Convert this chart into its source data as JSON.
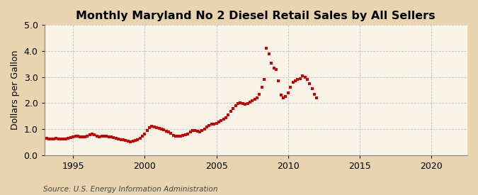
{
  "title": "Monthly Maryland No 2 Diesel Retail Sales by All Sellers",
  "ylabel": "Dollars per Gallon",
  "source": "Source: U.S. Energy Information Administration",
  "xlim": [
    1993.0,
    2022.5
  ],
  "ylim": [
    0.0,
    5.0
  ],
  "xticks": [
    1995,
    2000,
    2005,
    2010,
    2015,
    2020
  ],
  "yticks": [
    0.0,
    1.0,
    2.0,
    3.0,
    4.0,
    5.0
  ],
  "background_color": "#f5deb3",
  "plot_bg_color": "#f8f0e0",
  "dot_color": "#cc0000",
  "grid_color": "#aaaaaa",
  "title_fontsize": 11.5,
  "label_fontsize": 9,
  "tick_fontsize": 9,
  "control_points": [
    [
      1993.17,
      0.64
    ],
    [
      1993.33,
      0.63
    ],
    [
      1993.5,
      0.62
    ],
    [
      1993.67,
      0.63
    ],
    [
      1993.83,
      0.64
    ],
    [
      1994.0,
      0.63
    ],
    [
      1994.17,
      0.62
    ],
    [
      1994.33,
      0.61
    ],
    [
      1994.5,
      0.62
    ],
    [
      1994.67,
      0.64
    ],
    [
      1994.83,
      0.67
    ],
    [
      1995.0,
      0.7
    ],
    [
      1995.17,
      0.72
    ],
    [
      1995.33,
      0.72
    ],
    [
      1995.5,
      0.7
    ],
    [
      1995.67,
      0.69
    ],
    [
      1995.83,
      0.7
    ],
    [
      1996.0,
      0.73
    ],
    [
      1996.17,
      0.78
    ],
    [
      1996.33,
      0.8
    ],
    [
      1996.5,
      0.77
    ],
    [
      1996.67,
      0.73
    ],
    [
      1996.83,
      0.71
    ],
    [
      1997.0,
      0.72
    ],
    [
      1997.17,
      0.73
    ],
    [
      1997.33,
      0.72
    ],
    [
      1997.5,
      0.71
    ],
    [
      1997.67,
      0.7
    ],
    [
      1997.83,
      0.68
    ],
    [
      1998.0,
      0.65
    ],
    [
      1998.17,
      0.62
    ],
    [
      1998.33,
      0.6
    ],
    [
      1998.5,
      0.58
    ],
    [
      1998.67,
      0.56
    ],
    [
      1998.83,
      0.54
    ],
    [
      1999.0,
      0.52
    ],
    [
      1999.17,
      0.53
    ],
    [
      1999.33,
      0.56
    ],
    [
      1999.5,
      0.6
    ],
    [
      1999.67,
      0.65
    ],
    [
      1999.83,
      0.72
    ],
    [
      2000.0,
      0.82
    ],
    [
      2000.17,
      0.95
    ],
    [
      2000.33,
      1.05
    ],
    [
      2000.5,
      1.1
    ],
    [
      2000.67,
      1.08
    ],
    [
      2000.83,
      1.05
    ],
    [
      2001.0,
      1.02
    ],
    [
      2001.17,
      1.0
    ],
    [
      2001.33,
      0.97
    ],
    [
      2001.5,
      0.93
    ],
    [
      2001.67,
      0.88
    ],
    [
      2001.83,
      0.83
    ],
    [
      2002.0,
      0.76
    ],
    [
      2002.17,
      0.73
    ],
    [
      2002.33,
      0.72
    ],
    [
      2002.5,
      0.73
    ],
    [
      2002.67,
      0.75
    ],
    [
      2002.83,
      0.78
    ],
    [
      2003.0,
      0.82
    ],
    [
      2003.17,
      0.9
    ],
    [
      2003.33,
      0.95
    ],
    [
      2003.5,
      0.95
    ],
    [
      2003.67,
      0.92
    ],
    [
      2003.83,
      0.9
    ],
    [
      2004.0,
      0.94
    ],
    [
      2004.17,
      1.0
    ],
    [
      2004.33,
      1.08
    ],
    [
      2004.5,
      1.14
    ],
    [
      2004.67,
      1.18
    ],
    [
      2004.83,
      1.2
    ],
    [
      2005.0,
      1.22
    ],
    [
      2005.17,
      1.28
    ],
    [
      2005.33,
      1.32
    ],
    [
      2005.5,
      1.38
    ],
    [
      2005.67,
      1.45
    ],
    [
      2005.83,
      1.55
    ],
    [
      2006.0,
      1.68
    ],
    [
      2006.17,
      1.78
    ],
    [
      2006.33,
      1.9
    ],
    [
      2006.5,
      1.98
    ],
    [
      2006.67,
      2.0
    ],
    [
      2006.83,
      1.98
    ],
    [
      2007.0,
      1.95
    ],
    [
      2007.17,
      1.98
    ],
    [
      2007.33,
      2.05
    ],
    [
      2007.5,
      2.1
    ],
    [
      2007.67,
      2.15
    ],
    [
      2007.83,
      2.2
    ],
    [
      2008.0,
      2.35
    ],
    [
      2008.17,
      2.6
    ],
    [
      2008.33,
      2.9
    ],
    [
      2008.5,
      4.1
    ],
    [
      2008.67,
      3.9
    ],
    [
      2008.83,
      3.55
    ],
    [
      2009.0,
      3.35
    ],
    [
      2009.17,
      3.3
    ],
    [
      2009.33,
      2.85
    ],
    [
      2009.5,
      2.3
    ],
    [
      2009.67,
      2.2
    ],
    [
      2009.83,
      2.25
    ],
    [
      2010.0,
      2.4
    ],
    [
      2010.17,
      2.6
    ],
    [
      2010.33,
      2.8
    ],
    [
      2010.5,
      2.85
    ],
    [
      2010.67,
      2.9
    ],
    [
      2010.83,
      2.95
    ],
    [
      2011.0,
      3.05
    ],
    [
      2011.17,
      3.0
    ],
    [
      2011.33,
      2.9
    ],
    [
      2011.5,
      2.75
    ],
    [
      2011.67,
      2.55
    ],
    [
      2011.83,
      2.35
    ],
    [
      2012.0,
      2.2
    ]
  ]
}
